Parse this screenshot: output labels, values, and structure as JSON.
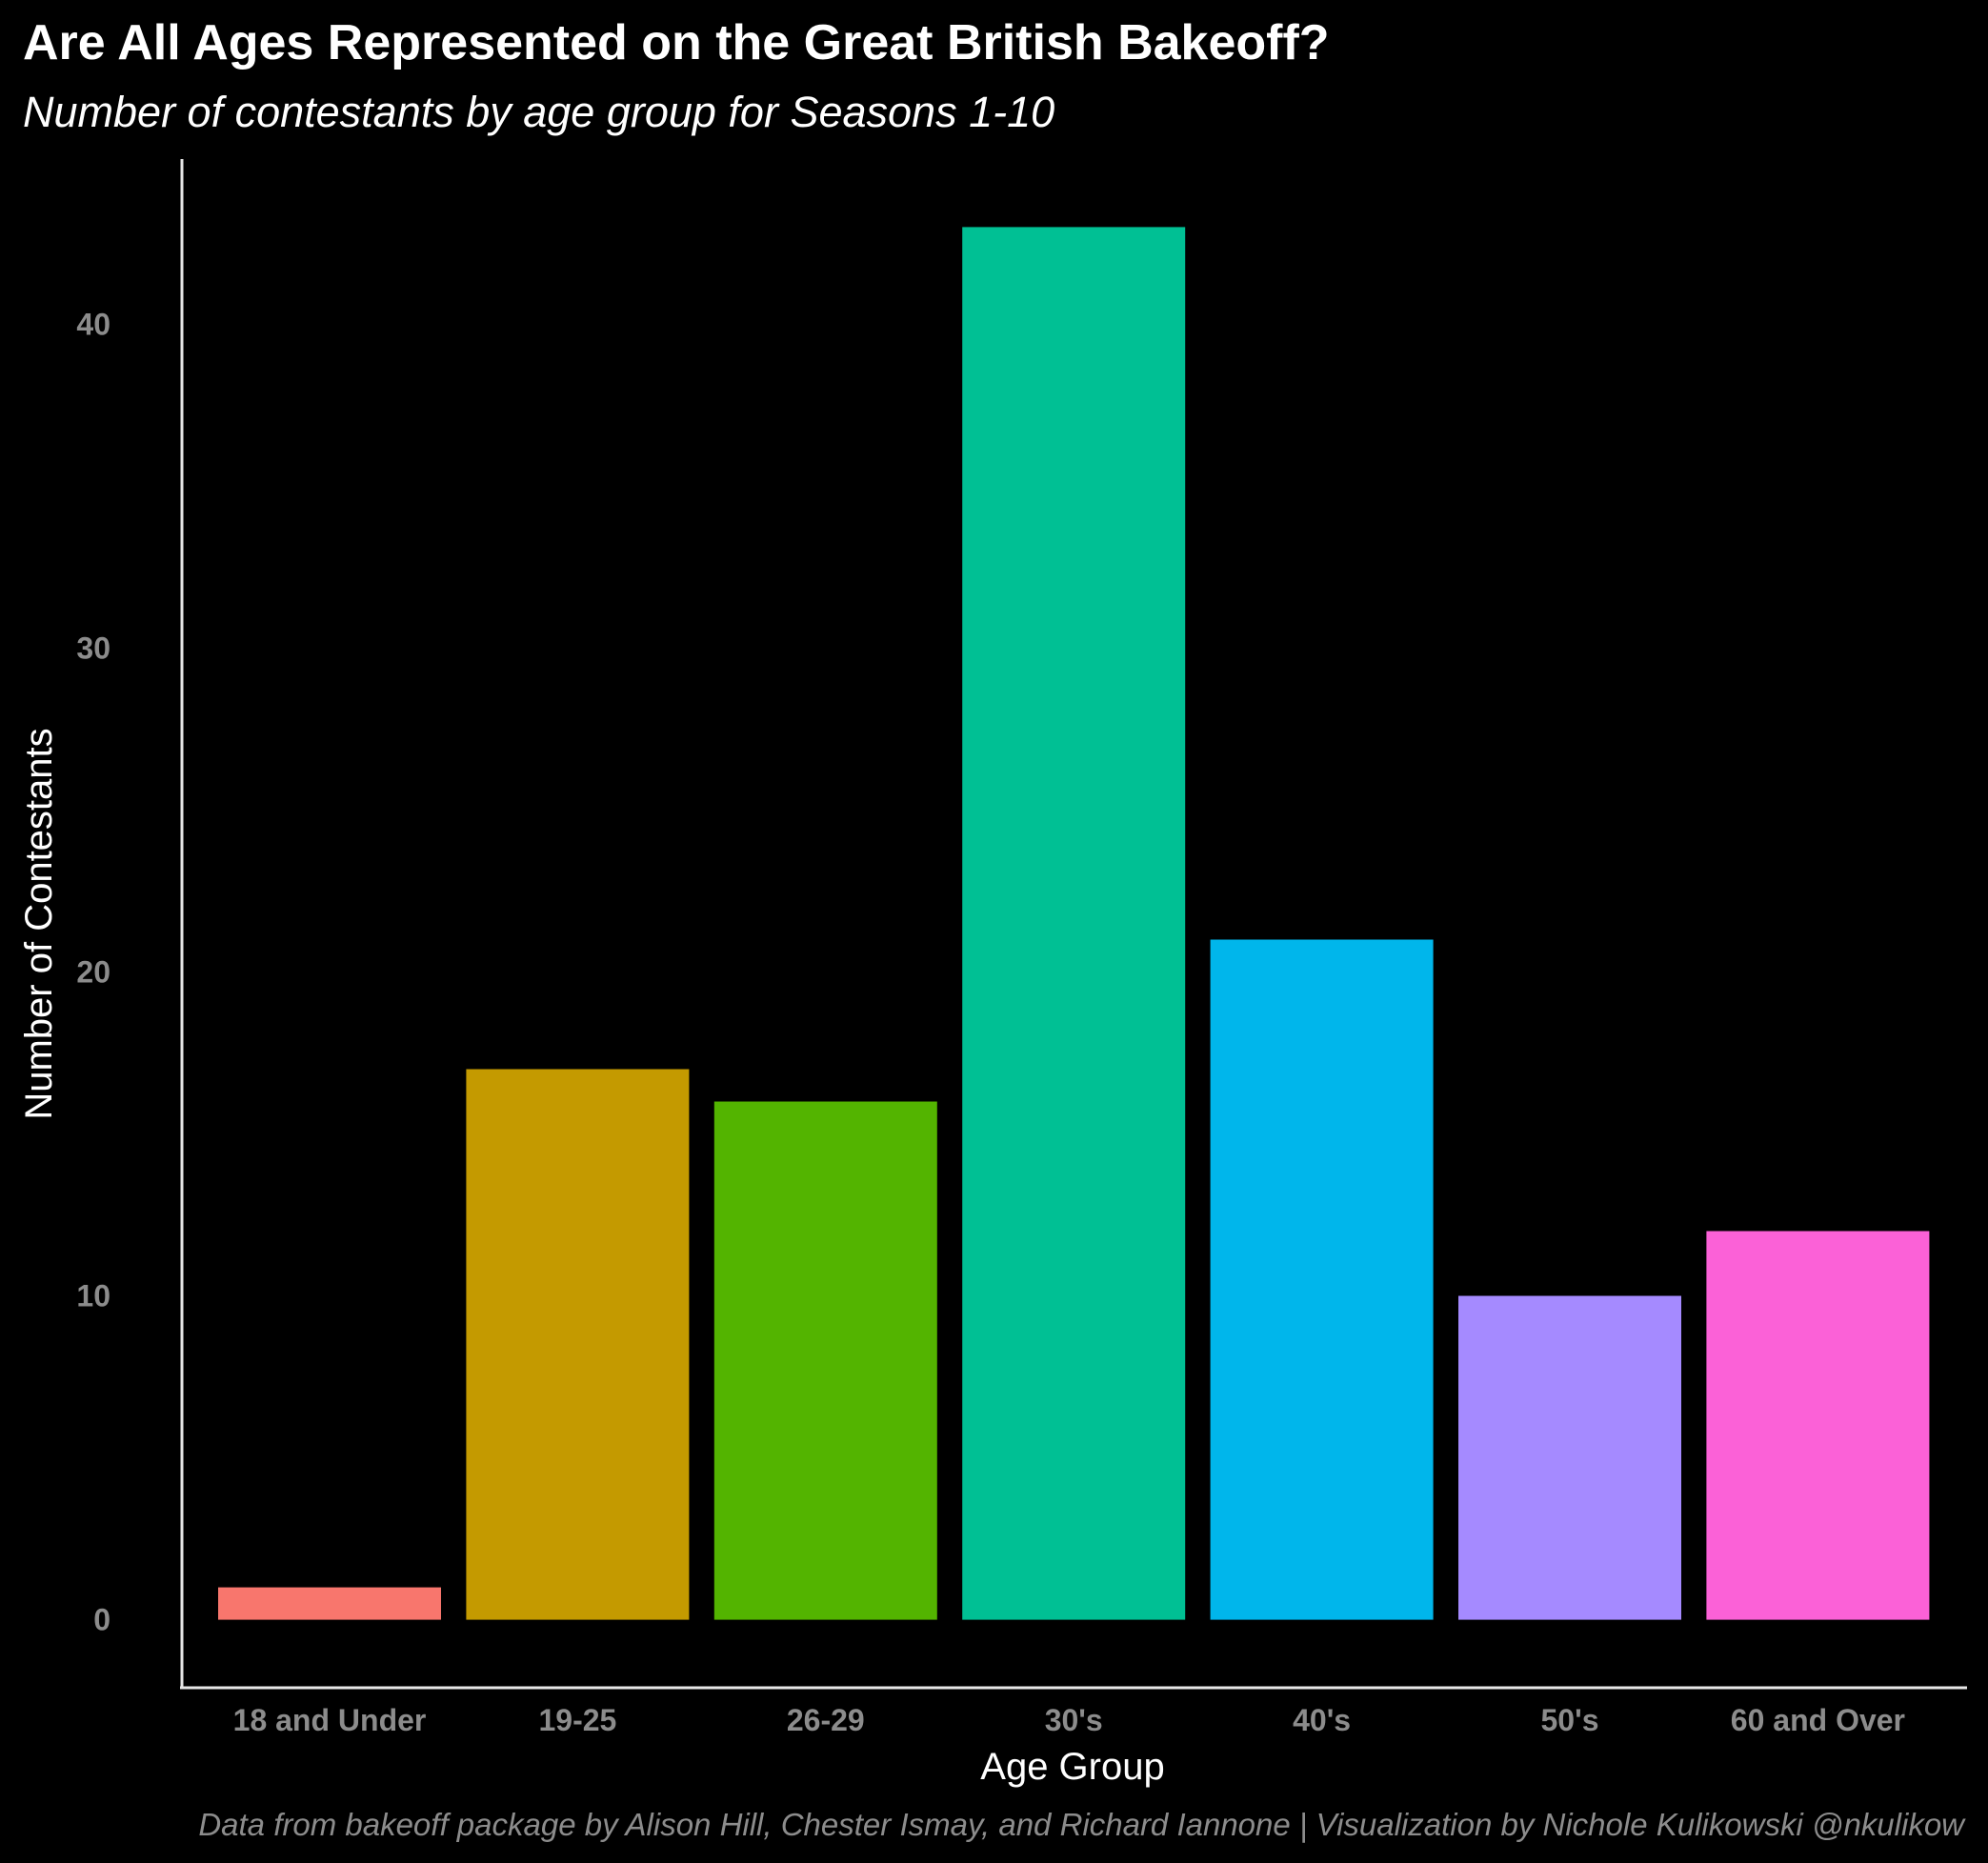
{
  "chart_data": {
    "type": "bar",
    "title": "Are All Ages Represented on the Great British Bakeoff?",
    "subtitle": "Number of contestants by age group for Seasons 1-10",
    "xlabel": "Age Group",
    "ylabel": "Number of Contestants",
    "caption": "Data from bakeoff package by Alison Hill, Chester Ismay, and Richard Iannone | Visualization by Nichole Kulikowski @nkulikow",
    "categories": [
      "18 and Under",
      "19-25",
      "26-29",
      "30's",
      "40's",
      "50's",
      "60 and Over"
    ],
    "values": [
      1,
      17,
      16,
      43,
      21,
      10,
      12
    ],
    "colors": [
      "#F8766D",
      "#C49A00",
      "#53B400",
      "#00C094",
      "#00B6EB",
      "#A58AFF",
      "#FB61D7"
    ],
    "yticks": [
      0,
      10,
      20,
      30,
      40
    ],
    "ylim": [
      -2.1,
      45.1
    ],
    "grid": false,
    "legend": "none",
    "background": "#000000"
  }
}
